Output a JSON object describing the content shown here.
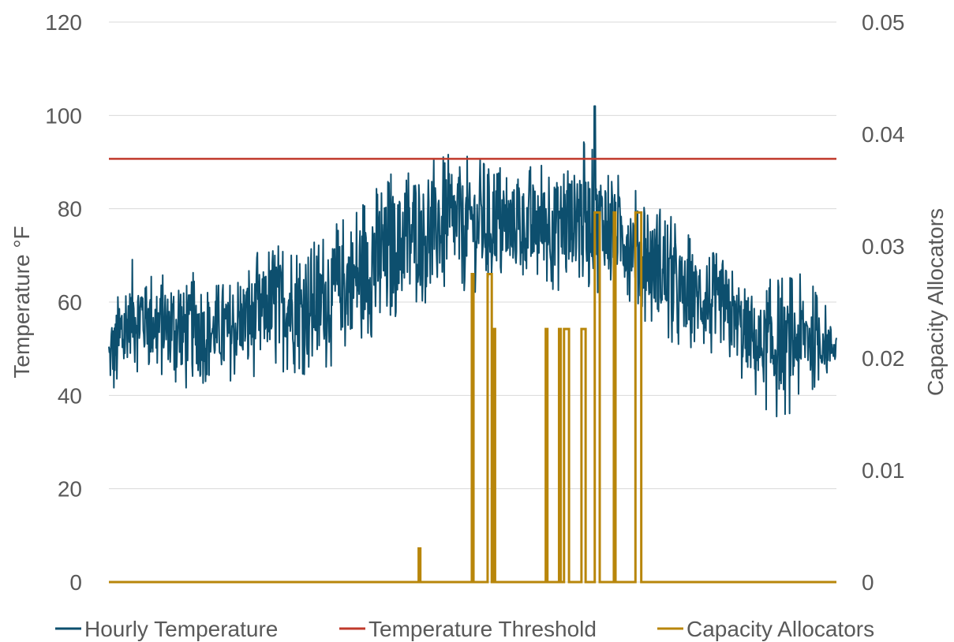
{
  "chart_data": {
    "type": "line",
    "xlabel": "",
    "ylabel": "Temperature °F",
    "y2label": "Capacity Allocators",
    "ylim": [
      0,
      120
    ],
    "y2lim": [
      0,
      0.05
    ],
    "y_ticks": [
      "0",
      "20",
      "40",
      "60",
      "80",
      "100",
      "120"
    ],
    "y2_ticks": [
      "0",
      "0.01",
      "0.02",
      "0.03",
      "0.04",
      "0.05"
    ],
    "x_range": [
      0,
      8760
    ],
    "grid": true,
    "legend_position": "bottom",
    "colors": {
      "temperature": "#0d4f6e",
      "threshold": "#c0392b",
      "allocators": "#b8860b",
      "grid": "#d9d9d9"
    },
    "series": [
      {
        "name": "Hourly Temperature",
        "axis": "left",
        "description": "Hourly temperature values; daily envelope (hour range approximated)",
        "envelope": {
          "x": [
            0,
            300,
            600,
            900,
            1200,
            1500,
            1800,
            2100,
            2400,
            2700,
            3000,
            3300,
            3600,
            3900,
            4200,
            4500,
            4800,
            5100,
            5400,
            5700,
            6000,
            6300,
            6600,
            6900,
            7200,
            7500,
            7800,
            8100,
            8400,
            8760
          ],
          "low": [
            38,
            45,
            44,
            40,
            43,
            43,
            44,
            45,
            44,
            46,
            48,
            52,
            58,
            60,
            62,
            62,
            63,
            63,
            62,
            62,
            62,
            60,
            52,
            48,
            48,
            45,
            38,
            34,
            40,
            45
          ],
          "high": [
            57,
            70,
            66,
            68,
            64,
            65,
            72,
            74,
            72,
            78,
            82,
            88,
            90,
            91,
            92,
            91,
            90,
            90,
            92,
            95,
            90,
            86,
            82,
            76,
            72,
            68,
            64,
            66,
            66,
            56
          ]
        },
        "peak": {
          "x": 5850,
          "y": 102
        }
      },
      {
        "name": "Temperature Threshold",
        "axis": "left",
        "value": 90.7
      },
      {
        "name": "Capacity Allocators",
        "axis": "right",
        "spikes": [
          {
            "x": 3730,
            "width": 20,
            "value": 0.003
          },
          {
            "x": 4370,
            "width": 20,
            "value": 0.0275
          },
          {
            "x": 4560,
            "width": 50,
            "value": 0.0275
          },
          {
            "x": 4630,
            "width": 20,
            "value": 0.0226
          },
          {
            "x": 5260,
            "width": 20,
            "value": 0.0226
          },
          {
            "x": 5420,
            "width": 20,
            "value": 0.0226
          },
          {
            "x": 5480,
            "width": 60,
            "value": 0.0226
          },
          {
            "x": 5690,
            "width": 50,
            "value": 0.0226
          },
          {
            "x": 5850,
            "width": 60,
            "value": 0.033
          },
          {
            "x": 6080,
            "width": 20,
            "value": 0.033
          },
          {
            "x": 6340,
            "width": 70,
            "value": 0.033
          }
        ]
      }
    ]
  }
}
